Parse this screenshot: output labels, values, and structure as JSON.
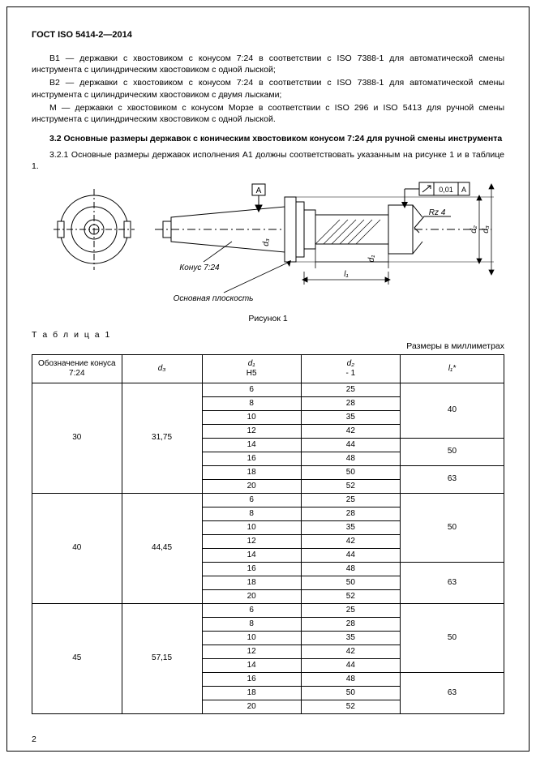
{
  "header": "ГОСТ ISO 5414-2—2014",
  "paragraphs": {
    "p1": "B1 — державки с хвостовиком с конусом 7:24 в соответствии с ISO 7388-1 для автоматической смены инструмента с цилиндрическим хвостовиком с одной лыской;",
    "p2": "B2 — державки с хвостовиком с конусом 7:24 в соответствии с ISO 7388-1 для автоматической смены инструмента с цилиндрическим хвостовиком с двумя лысками;",
    "p3": "M — державки с хвостовиком с конусом Морзе в соответствии с ISO 296 и ISO 5413 для ручной смены инструмента с цилиндрическим хвостовиком с одной лыской.",
    "sectionTitle": "3.2 Основные размеры державок с коническим хвостовиком конусом 7:24 для ручной смены инструмента",
    "p4": "3.2.1 Основные размеры державок исполнения A1 должны соответствовать указанным на рисунке 1 и в таблице 1."
  },
  "figure": {
    "caption": "Рисунок 1",
    "labels": {
      "A": "A",
      "konus": "Конус 7:24",
      "plane": "Основная плоскость",
      "rz": "Rz 4",
      "tol": "0,01",
      "d1": "d₁",
      "d2": "d₂",
      "d3": "d₃",
      "l1": "l₁"
    }
  },
  "tableMeta": {
    "label": "Т а б л и ц а  1",
    "units": "Размеры в миллиметрах"
  },
  "tableHeaders": {
    "c1": "Обозначение конуса 7:24",
    "c2": "d₃",
    "c3a": "d₁",
    "c3b": "H5",
    "c4a": "d₂",
    "c4b": "- 1",
    "c5": "l₁*"
  },
  "tableGroups": [
    {
      "cone": "30",
      "d3": "31,75",
      "rows": [
        {
          "d1": "6",
          "d2": "25",
          "l1": "40",
          "l1span": 4
        },
        {
          "d1": "8",
          "d2": "28"
        },
        {
          "d1": "10",
          "d2": "35"
        },
        {
          "d1": "12",
          "d2": "42"
        },
        {
          "d1": "14",
          "d2": "44",
          "l1": "50",
          "l1span": 2
        },
        {
          "d1": "16",
          "d2": "48"
        },
        {
          "d1": "18",
          "d2": "50",
          "l1": "63",
          "l1span": 2
        },
        {
          "d1": "20",
          "d2": "52"
        }
      ]
    },
    {
      "cone": "40",
      "d3": "44,45",
      "rows": [
        {
          "d1": "6",
          "d2": "25",
          "l1": "50",
          "l1span": 5
        },
        {
          "d1": "8",
          "d2": "28"
        },
        {
          "d1": "10",
          "d2": "35"
        },
        {
          "d1": "12",
          "d2": "42"
        },
        {
          "d1": "14",
          "d2": "44"
        },
        {
          "d1": "16",
          "d2": "48",
          "l1": "63",
          "l1span": 3
        },
        {
          "d1": "18",
          "d2": "50"
        },
        {
          "d1": "20",
          "d2": "52"
        }
      ]
    },
    {
      "cone": "45",
      "d3": "57,15",
      "rows": [
        {
          "d1": "6",
          "d2": "25",
          "l1": "50",
          "l1span": 5
        },
        {
          "d1": "8",
          "d2": "28"
        },
        {
          "d1": "10",
          "d2": "35"
        },
        {
          "d1": "12",
          "d2": "42"
        },
        {
          "d1": "14",
          "d2": "44"
        },
        {
          "d1": "16",
          "d2": "48",
          "l1": "63",
          "l1span": 3
        },
        {
          "d1": "18",
          "d2": "50"
        },
        {
          "d1": "20",
          "d2": "52"
        }
      ]
    }
  ],
  "pageNumber": "2"
}
